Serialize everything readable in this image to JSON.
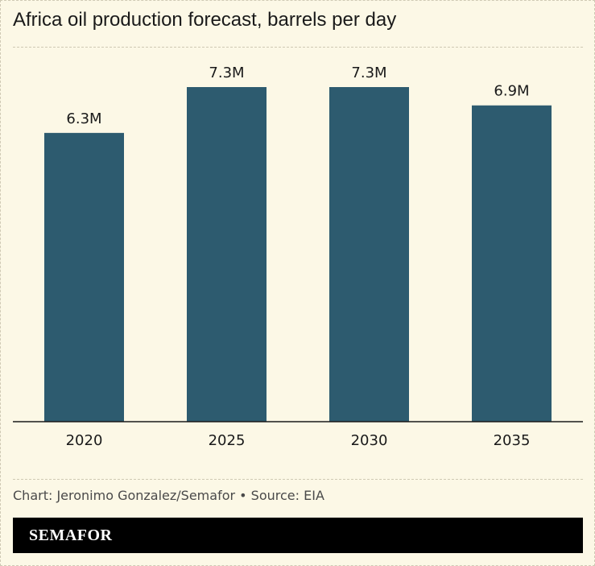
{
  "chart_data": {
    "type": "bar",
    "title": "Africa oil production forecast, barrels per day",
    "categories": [
      "2020",
      "2025",
      "2030",
      "2035"
    ],
    "values": [
      6.3,
      7.3,
      7.3,
      6.9
    ],
    "data_labels": [
      "6.3M",
      "7.3M",
      "7.3M",
      "6.9M"
    ],
    "unit": "million barrels per day",
    "ylim": [
      0,
      7.3
    ],
    "xlabel": "",
    "ylabel": "",
    "grid": false,
    "bar_color": "#2d5b6f"
  },
  "footer": {
    "source": "Chart: Jeronimo Gonzalez/Semafor • Source: EIA",
    "brand": "SEMAFOR"
  }
}
